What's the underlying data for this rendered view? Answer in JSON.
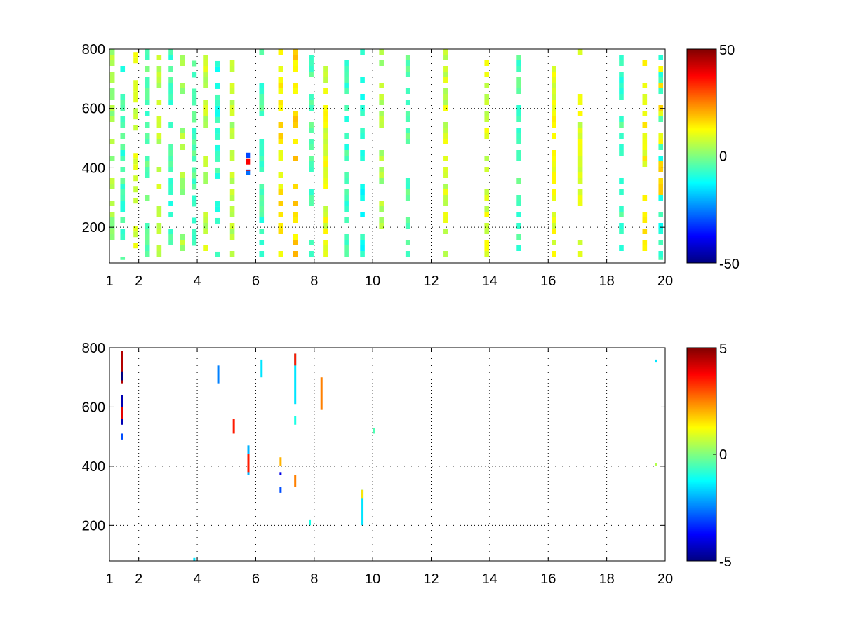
{
  "chart_data": [
    {
      "type": "heatmap",
      "title": "",
      "xlabel": "",
      "ylabel": "",
      "xlim": [
        1,
        20
      ],
      "ylim": [
        80,
        800
      ],
      "x_ticks": [
        1,
        2,
        4,
        6,
        8,
        10,
        12,
        14,
        16,
        18,
        20
      ],
      "y_ticks": [
        200,
        400,
        600,
        800
      ],
      "grid": true,
      "colormap": "jet",
      "colorbar": {
        "limits": [
          -50,
          50
        ],
        "tick_labels": [
          "50",
          "0",
          "-50"
        ]
      },
      "pattern": "sparse cells spread over the whole map; mostly values between -10 and 15 (green, cyan, yellow); densest at x 1-5, sparser toward x 11-20; isolated strong values near x 5.8, y 400",
      "columns": [
        {
          "x": 1.1,
          "cells": [
            [
              100,
              800,
              3
            ]
          ]
        },
        {
          "x": 1.45,
          "cells": [
            [
              90,
              800,
              -6
            ]
          ]
        },
        {
          "x": 1.9,
          "cells": [
            [
              100,
              790,
              8
            ]
          ]
        },
        {
          "x": 2.3,
          "cells": [
            [
              100,
              800,
              -4
            ]
          ]
        },
        {
          "x": 2.7,
          "cells": [
            [
              100,
              800,
              6
            ]
          ]
        },
        {
          "x": 3.1,
          "cells": [
            [
              100,
              800,
              -7
            ]
          ]
        },
        {
          "x": 3.5,
          "cells": [
            [
              120,
              800,
              4
            ]
          ]
        },
        {
          "x": 3.9,
          "cells": [
            [
              100,
              780,
              -5
            ]
          ]
        },
        {
          "x": 4.3,
          "cells": [
            [
              100,
              800,
              7
            ]
          ]
        },
        {
          "x": 4.7,
          "cells": [
            [
              100,
              760,
              -8
            ]
          ]
        },
        {
          "x": 5.2,
          "cells": [
            [
              100,
              800,
              5
            ]
          ]
        },
        {
          "x": 5.75,
          "cells": [
            [
              360,
              470,
              -30
            ],
            [
              390,
              430,
              35
            ]
          ]
        },
        {
          "x": 6.2,
          "cells": [
            [
              100,
              800,
              -6
            ]
          ]
        },
        {
          "x": 6.85,
          "cells": [
            [
              100,
              800,
              14
            ]
          ]
        },
        {
          "x": 7.35,
          "cells": [
            [
              100,
              800,
              16
            ]
          ]
        },
        {
          "x": 7.9,
          "cells": [
            [
              100,
              800,
              -5
            ]
          ]
        },
        {
          "x": 8.4,
          "cells": [
            [
              100,
              800,
              10
            ]
          ]
        },
        {
          "x": 9.1,
          "cells": [
            [
              100,
              800,
              -6
            ]
          ]
        },
        {
          "x": 9.65,
          "cells": [
            [
              100,
              800,
              -10
            ]
          ]
        },
        {
          "x": 10.3,
          "cells": [
            [
              100,
              800,
              4
            ]
          ]
        },
        {
          "x": 11.2,
          "cells": [
            [
              100,
              800,
              -4
            ]
          ]
        },
        {
          "x": 12.5,
          "cells": [
            [
              100,
              800,
              8
            ]
          ]
        },
        {
          "x": 13.9,
          "cells": [
            [
              100,
              800,
              9
            ]
          ]
        },
        {
          "x": 15.0,
          "cells": [
            [
              100,
              800,
              -5
            ]
          ]
        },
        {
          "x": 16.2,
          "cells": [
            [
              100,
              800,
              11
            ]
          ]
        },
        {
          "x": 17.1,
          "cells": [
            [
              100,
              800,
              9
            ]
          ]
        },
        {
          "x": 18.5,
          "cells": [
            [
              100,
              800,
              -6
            ]
          ]
        },
        {
          "x": 19.3,
          "cells": [
            [
              100,
              800,
              12
            ]
          ]
        },
        {
          "x": 19.85,
          "cells": [
            [
              90,
              800,
              -8
            ],
            [
              300,
              800,
              14
            ]
          ]
        }
      ]
    },
    {
      "type": "heatmap",
      "title": "",
      "xlabel": "",
      "ylabel": "",
      "xlim": [
        1,
        20
      ],
      "ylim": [
        80,
        800
      ],
      "x_ticks": [
        1,
        2,
        4,
        6,
        8,
        10,
        12,
        14,
        16,
        18,
        20
      ],
      "y_ticks": [
        200,
        400,
        600,
        800
      ],
      "grid": true,
      "colormap": "jet",
      "colorbar": {
        "limits": [
          -5,
          5
        ],
        "tick_labels": [
          "5",
          "0",
          "-5"
        ]
      },
      "pattern": "mostly blank; a few short vertical streaks of non-zero values",
      "columns": [
        {
          "x": 1.42,
          "cells": [
            [
              680,
              790,
              4.5
            ],
            [
              690,
              720,
              -5
            ],
            [
              540,
              640,
              -4.5
            ],
            [
              560,
              600,
              4
            ],
            [
              490,
              510,
              -3
            ]
          ]
        },
        {
          "x": 3.9,
          "cells": [
            [
              80,
              90,
              -1.5
            ]
          ]
        },
        {
          "x": 4.72,
          "cells": [
            [
              680,
              740,
              -2.5
            ]
          ]
        },
        {
          "x": 5.25,
          "cells": [
            [
              510,
              560,
              3.5
            ]
          ]
        },
        {
          "x": 5.75,
          "cells": [
            [
              370,
              470,
              -2
            ],
            [
              380,
              440,
              3.5
            ]
          ]
        },
        {
          "x": 6.2,
          "cells": [
            [
              700,
              760,
              -1.5
            ]
          ]
        },
        {
          "x": 6.85,
          "cells": [
            [
              400,
              430,
              2
            ],
            [
              370,
              380,
              -4
            ],
            [
              310,
              330,
              -3
            ]
          ]
        },
        {
          "x": 7.35,
          "cells": [
            [
              610,
              780,
              -1.5
            ],
            [
              740,
              780,
              3.5
            ],
            [
              540,
              570,
              -1
            ],
            [
              330,
              370,
              2.5
            ]
          ]
        },
        {
          "x": 7.85,
          "cells": [
            [
              200,
              220,
              -1
            ]
          ]
        },
        {
          "x": 8.25,
          "cells": [
            [
              590,
              700,
              2.5
            ]
          ]
        },
        {
          "x": 9.65,
          "cells": [
            [
              200,
              320,
              -1.5
            ],
            [
              290,
              320,
              1.5
            ]
          ]
        },
        {
          "x": 10.05,
          "cells": [
            [
              510,
              530,
              -0.5
            ]
          ]
        },
        {
          "x": 19.7,
          "cells": [
            [
              750,
              760,
              -1.5
            ],
            [
              400,
              410,
              0.5
            ]
          ]
        }
      ]
    }
  ]
}
